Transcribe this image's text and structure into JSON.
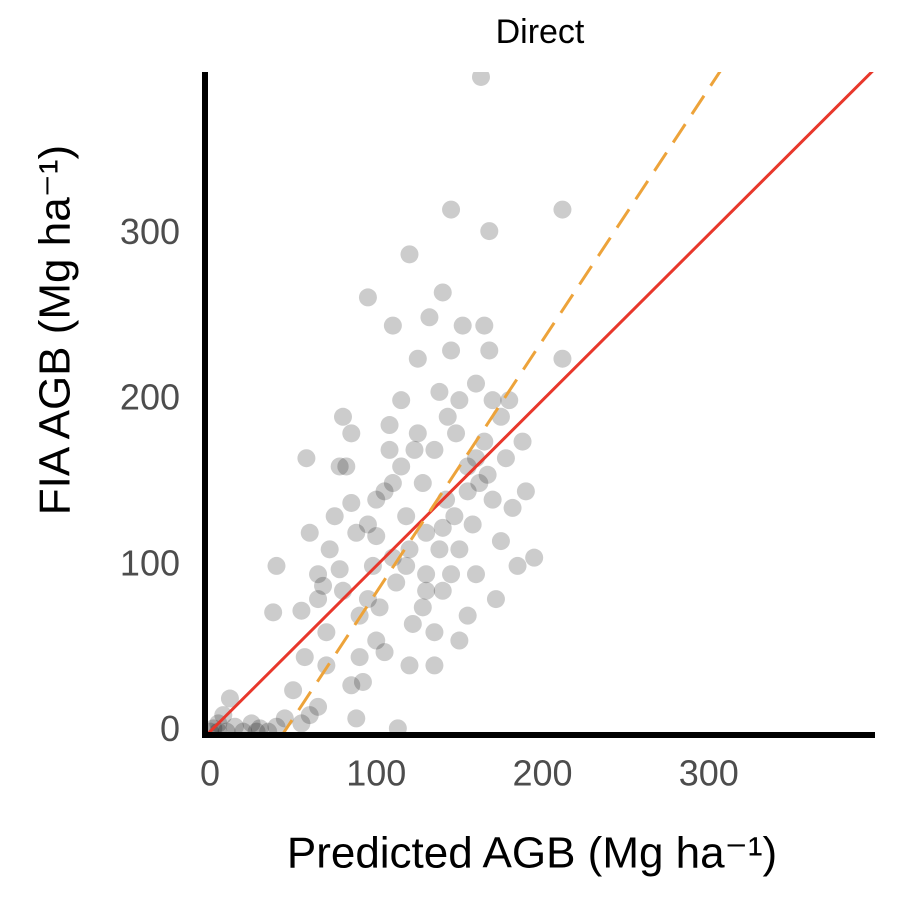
{
  "chart_data": {
    "type": "scatter",
    "title": "Direct",
    "xlabel": "Predicted AGB (Mg ha⁻¹)",
    "ylabel": "FIA AGB (Mg ha⁻¹)",
    "xlim": [
      -3,
      400
    ],
    "ylim": [
      -2,
      398
    ],
    "xticks": [
      0,
      100,
      200,
      300
    ],
    "yticks": [
      0,
      100,
      200,
      300
    ],
    "series": [
      {
        "color": "rgba(0,0,0,0.2)",
        "x": [
          0,
          2,
          5,
          8,
          12,
          15,
          20,
          25,
          30,
          35,
          40,
          45,
          50,
          55,
          60,
          65,
          5,
          10,
          28,
          40,
          38,
          55,
          57,
          58,
          65,
          68,
          70,
          72,
          75,
          78,
          80,
          80,
          82,
          85,
          85,
          88,
          90,
          90,
          92,
          95,
          95,
          98,
          100,
          100,
          102,
          105,
          108,
          110,
          110,
          112,
          113,
          115,
          115,
          118,
          120,
          120,
          120,
          122,
          125,
          125,
          128,
          130,
          130,
          132,
          135,
          135,
          138,
          140,
          140,
          142,
          145,
          145,
          148,
          150,
          150,
          152,
          155,
          155,
          158,
          160,
          160,
          162,
          163,
          165,
          165,
          168,
          168,
          170,
          172,
          175,
          175,
          178,
          180,
          182,
          185,
          188,
          190,
          195,
          212,
          212,
          88,
          105,
          118,
          128,
          138,
          145,
          155,
          170,
          150,
          135,
          100,
          110,
          123,
          143,
          147,
          160,
          167,
          140,
          130,
          108,
          95,
          78,
          85,
          70,
          60,
          65
        ],
        "values": [
          0,
          2,
          5,
          10,
          20,
          3,
          0,
          5,
          2,
          0,
          3,
          8,
          25,
          5,
          10,
          15,
          0,
          0,
          0,
          100,
          72,
          73,
          45,
          165,
          80,
          88,
          60,
          110,
          130,
          98,
          85,
          190,
          160,
          180,
          138,
          120,
          70,
          45,
          30,
          262,
          125,
          100,
          140,
          55,
          75,
          145,
          185,
          105,
          245,
          90,
          2,
          200,
          160,
          130,
          110,
          288,
          40,
          65,
          180,
          225,
          150,
          95,
          120,
          250,
          170,
          60,
          205,
          265,
          85,
          140,
          315,
          230,
          180,
          110,
          200,
          245,
          160,
          70,
          125,
          210,
          95,
          150,
          395,
          175,
          245,
          302,
          230,
          140,
          80,
          190,
          115,
          165,
          200,
          135,
          100,
          175,
          145,
          105,
          315,
          225,
          8,
          48,
          100,
          75,
          110,
          95,
          145,
          200,
          55,
          40,
          118,
          150,
          170,
          190,
          130,
          165,
          155,
          123,
          85,
          170,
          80,
          160,
          28,
          40,
          120,
          95
        ]
      }
    ],
    "lines": [
      {
        "color": "#e8372b",
        "slope": 1,
        "intercept": 0,
        "dashed": false
      },
      {
        "color": "#eda33a",
        "slope": 1.52,
        "intercept": -68,
        "dashed": true
      }
    ]
  }
}
